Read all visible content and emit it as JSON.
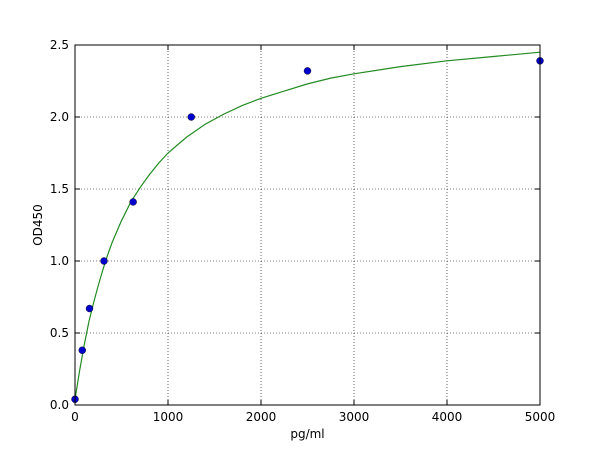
{
  "chart_data": {
    "type": "scatter",
    "title": "",
    "xlabel": "pg/ml",
    "ylabel": "OD450",
    "xlim": [
      0,
      5000
    ],
    "ylim": [
      0,
      2.5
    ],
    "x_ticks": [
      0,
      1000,
      2000,
      3000,
      4000,
      5000
    ],
    "x_tick_labels": [
      "0",
      "1000",
      "2000",
      "3000",
      "4000",
      "5000"
    ],
    "y_ticks": [
      0,
      0.5,
      1.0,
      1.5,
      2.0,
      2.5
    ],
    "y_tick_labels": [
      "0.0",
      "0.5",
      "1.0",
      "1.5",
      "2.0",
      "2.5"
    ],
    "grid": true,
    "legend": "none",
    "series": [
      {
        "kind": "points",
        "color": "#0000cc",
        "x": [
          0,
          78,
          156,
          312,
          625,
          1250,
          2500,
          5000
        ],
        "y": [
          0.04,
          0.38,
          0.67,
          1.0,
          1.41,
          2.0,
          2.32,
          2.39
        ]
      },
      {
        "kind": "fit-curve",
        "color": "#228b22",
        "x": [
          0,
          50,
          100,
          150,
          200,
          250,
          300,
          350,
          400,
          500,
          600,
          700,
          800,
          900,
          1000,
          1200,
          1400,
          1600,
          1800,
          2000,
          2250,
          2500,
          2750,
          3000,
          3500,
          4000,
          4500,
          5000
        ],
        "y": [
          0.04,
          0.24,
          0.42,
          0.58,
          0.71,
          0.83,
          0.94,
          1.04,
          1.13,
          1.28,
          1.41,
          1.51,
          1.6,
          1.68,
          1.75,
          1.86,
          1.95,
          2.02,
          2.08,
          2.13,
          2.18,
          2.23,
          2.27,
          2.3,
          2.35,
          2.39,
          2.42,
          2.45
        ]
      }
    ]
  }
}
